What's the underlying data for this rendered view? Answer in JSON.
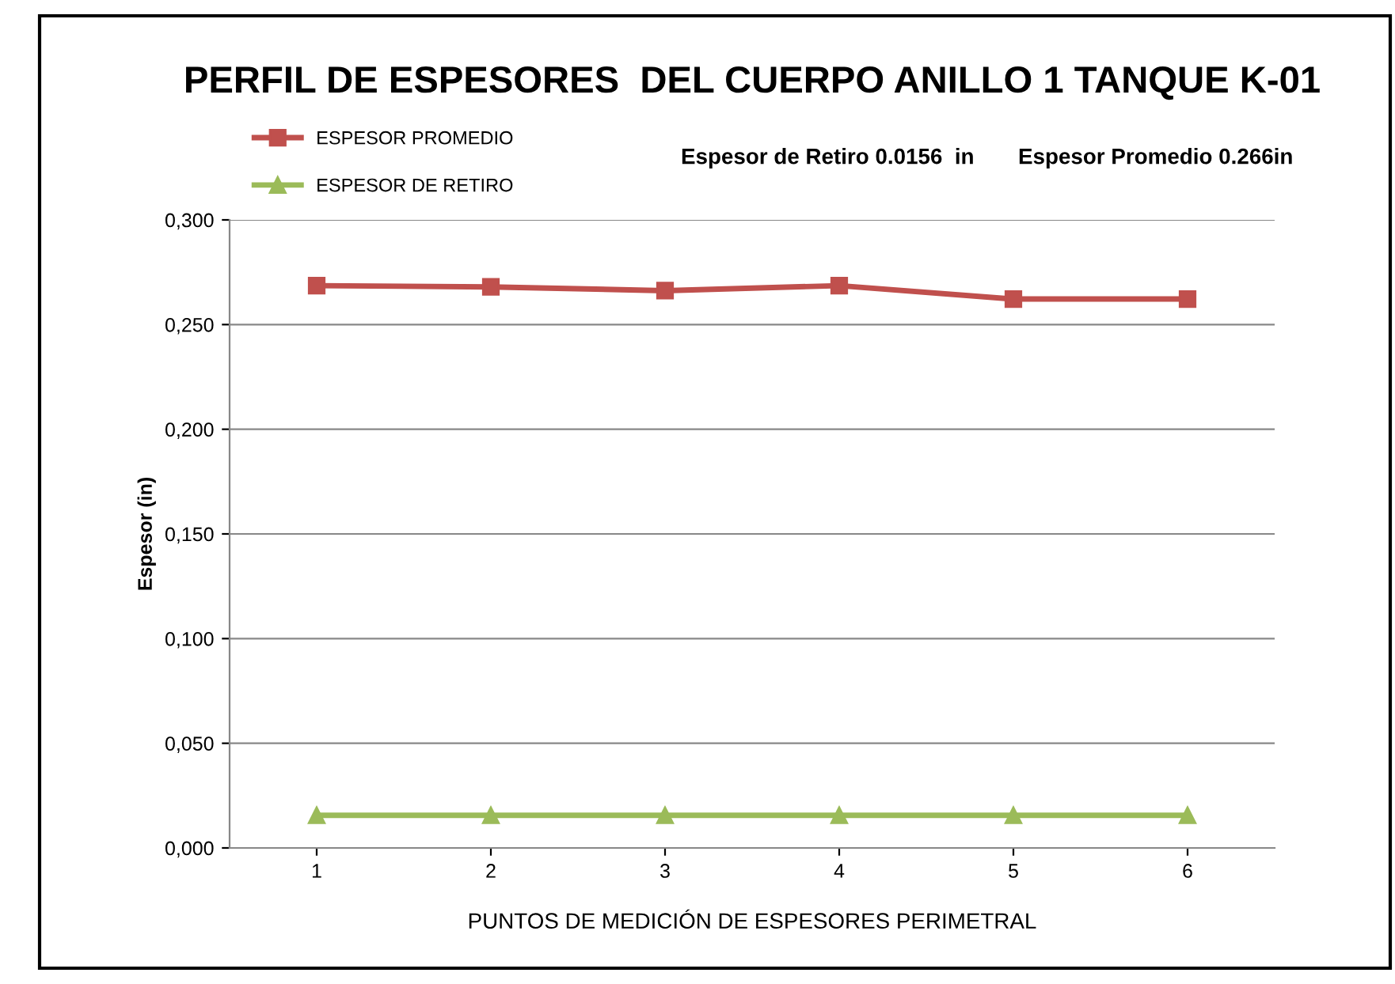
{
  "chart_data": {
    "type": "line",
    "title": "PERFIL DE ESPESORES  DEL CUERPO ANILLO 1 TANQUE K-01",
    "xlabel": "PUNTOS DE MEDICIÓN DE ESPESORES PERIMETRAL",
    "ylabel": "Espesor (in)",
    "categories": [
      "1",
      "2",
      "3",
      "4",
      "5",
      "6"
    ],
    "series": [
      {
        "name": "ESPESOR PROMEDIO",
        "color": "#c0504d",
        "marker": "square",
        "values": [
          0.2686,
          0.268,
          0.2662,
          0.2686,
          0.2622,
          0.2622
        ]
      },
      {
        "name": "ESPESOR DE RETIRO",
        "color": "#9bbb59",
        "marker": "triangle",
        "values": [
          0.0156,
          0.0156,
          0.0156,
          0.0156,
          0.0156,
          0.0156
        ]
      }
    ],
    "ylim": [
      0,
      0.3
    ],
    "yticks": [
      {
        "value": 0,
        "label": "0,000"
      },
      {
        "value": 0.05,
        "label": "0,050"
      },
      {
        "value": 0.1,
        "label": "0,100"
      },
      {
        "value": 0.15,
        "label": "0,150"
      },
      {
        "value": 0.2,
        "label": "0,200"
      },
      {
        "value": 0.25,
        "label": "0,250"
      },
      {
        "value": 0.3,
        "label": "0,300"
      }
    ],
    "grid": "y",
    "legend": "top left",
    "annotations": [
      "Espesor de Retiro 0.0156  in",
      "Espesor Promedio 0.266in"
    ]
  }
}
